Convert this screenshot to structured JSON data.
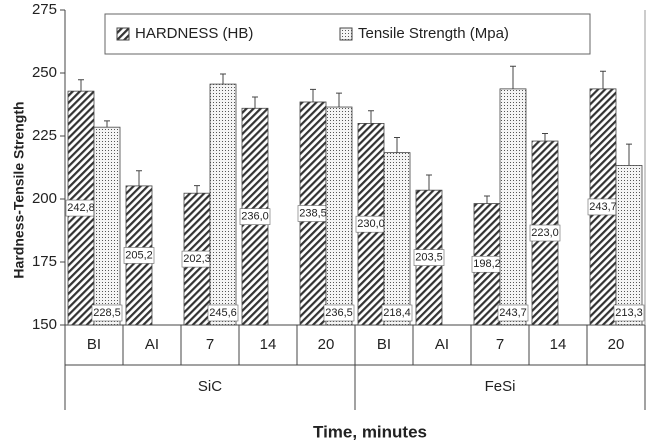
{
  "chart_data": {
    "type": "bar",
    "y_label": "Hardness-Tensile Strength",
    "x_label": "Time, minutes",
    "categories": [
      "BI",
      "AI",
      "7",
      "14",
      "20",
      "BI",
      "AI",
      "7",
      "14",
      "20"
    ],
    "groups": [
      {
        "name": "SiC",
        "span": 5
      },
      {
        "name": "FeSi",
        "span": 5
      }
    ],
    "series": [
      {
        "name": "HARDNESS (HB)",
        "color": "#333333",
        "pattern": "hatch",
        "values": [
          242.8,
          205.2,
          202.3,
          236.0,
          238.5,
          230.0,
          203.5,
          198.2,
          223.0,
          243.7
        ],
        "value_labels": [
          "242,8",
          "205,2",
          "202,3",
          "236,0",
          "238,5",
          "230,0",
          "203,5",
          "198,2",
          "223,0",
          "243,7"
        ],
        "errors": [
          4.5,
          6,
          3,
          4.5,
          5,
          5,
          6,
          3,
          3,
          7
        ]
      },
      {
        "name": "Tensile Strength (Mpa)",
        "color": "#555555",
        "pattern": "dots",
        "values": [
          228.5,
          null,
          245.6,
          null,
          236.5,
          218.4,
          null,
          243.7,
          null,
          213.3
        ],
        "value_labels": [
          "228,5",
          null,
          "245,6",
          null,
          "236,5",
          "218,4",
          null,
          "243,7",
          null,
          "213,3"
        ],
        "errors": [
          2.5,
          null,
          4,
          null,
          5.5,
          6,
          null,
          9,
          null,
          8.5
        ]
      }
    ],
    "ylim": [
      150,
      275
    ],
    "yticks": [
      150,
      175,
      200,
      225,
      250,
      275
    ],
    "legend": "top"
  }
}
